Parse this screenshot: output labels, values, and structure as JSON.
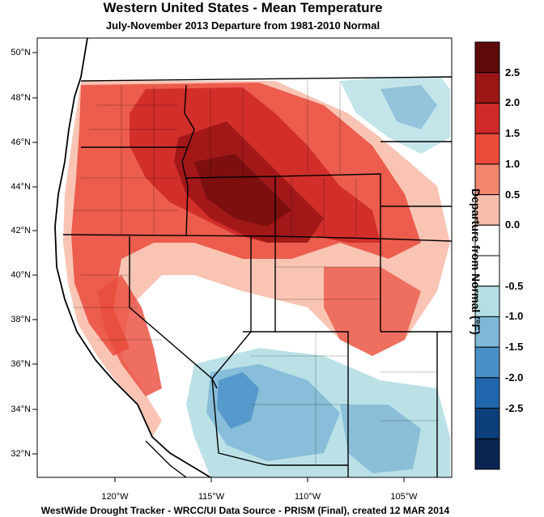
{
  "title": "Western United States - Mean Temperature",
  "subtitle": "July-November 2013  Departure from 1981-2010 Normal",
  "footer": "WestWide Drought Tracker - WRCC/UI  Data Source - PRISM (Final), created 12 MAR 2014",
  "map": {
    "lat_ticks": [
      "50°N",
      "48°N",
      "46°N",
      "44°N",
      "42°N",
      "40°N",
      "38°N",
      "36°N",
      "34°N",
      "32°N"
    ],
    "lon_ticks": [
      "120°W",
      "115°W",
      "110°W",
      "105°W"
    ]
  },
  "colorbar": {
    "title": "Departure from Normal (°F)",
    "labels": [
      "2.5",
      "2.0",
      "1.5",
      "1.0",
      "0.5",
      "0.0",
      "-0.5",
      "-1.0",
      "-1.5",
      "-2.0",
      "-2.5"
    ],
    "colors": [
      "#5e0a0a",
      "#9c1616",
      "#cf2a28",
      "#ea4b3b",
      "#f2866c",
      "#f8beac",
      "#ffffff",
      "#ffffff",
      "#b4dee4",
      "#7fb7d6",
      "#4a90c8",
      "#2066ad",
      "#0e3f7d",
      "#0a2550"
    ]
  }
}
